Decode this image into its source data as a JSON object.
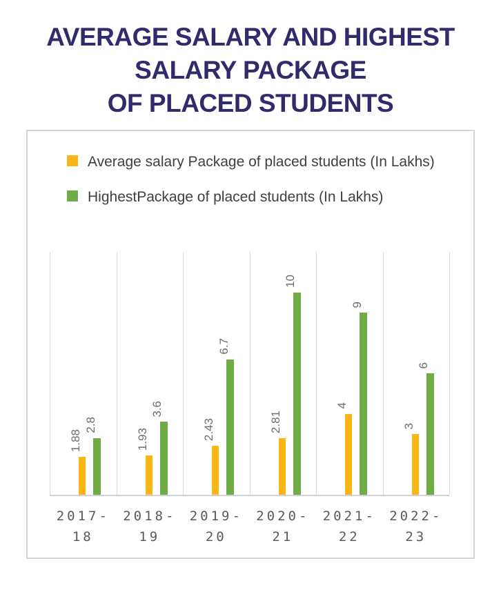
{
  "title": {
    "lines": [
      "AVERAGE SALARY AND HIGHEST",
      "SALARY PACKAGE",
      "OF PLACED STUDENTS"
    ],
    "color": "#312B6B"
  },
  "chart_data": {
    "type": "bar",
    "title": "AVERAGE SALARY AND HIGHEST SALARY PACKAGE OF PLACED STUDENTS",
    "categories": [
      "2017-18",
      "2018-19",
      "2019-20",
      "2020-21",
      "2021-22",
      "2022-23"
    ],
    "series": [
      {
        "name": "Average salary Package of placed students (In Lakhs)",
        "color": "#FBB616",
        "values": [
          1.88,
          1.93,
          2.43,
          2.81,
          4,
          3
        ],
        "value_labels": [
          "1.88",
          "1.93",
          "2.43",
          "2.81",
          "4",
          "3"
        ]
      },
      {
        "name": "HighestPackage of placed students (In Lakhs)",
        "color": "#6FAC46",
        "values": [
          2.8,
          3.6,
          6.7,
          10,
          9,
          6
        ],
        "value_labels": [
          "2.8",
          "3.6",
          "6.7",
          "10",
          "9",
          "6"
        ]
      }
    ],
    "ylim": [
      0,
      12
    ],
    "xlabel": "",
    "ylabel": "",
    "grid": "vertical-only",
    "legend_position": "top-left",
    "value_label_rotation": -90,
    "colors": {
      "gridline": "#DCDCDC",
      "axis_line": "#D2D2D2",
      "value_label": "#6E6E6E",
      "x_tick_label": "#5A5A5A",
      "legend_text": "#3F3F3F",
      "card_border": "#D5D5D5"
    }
  }
}
